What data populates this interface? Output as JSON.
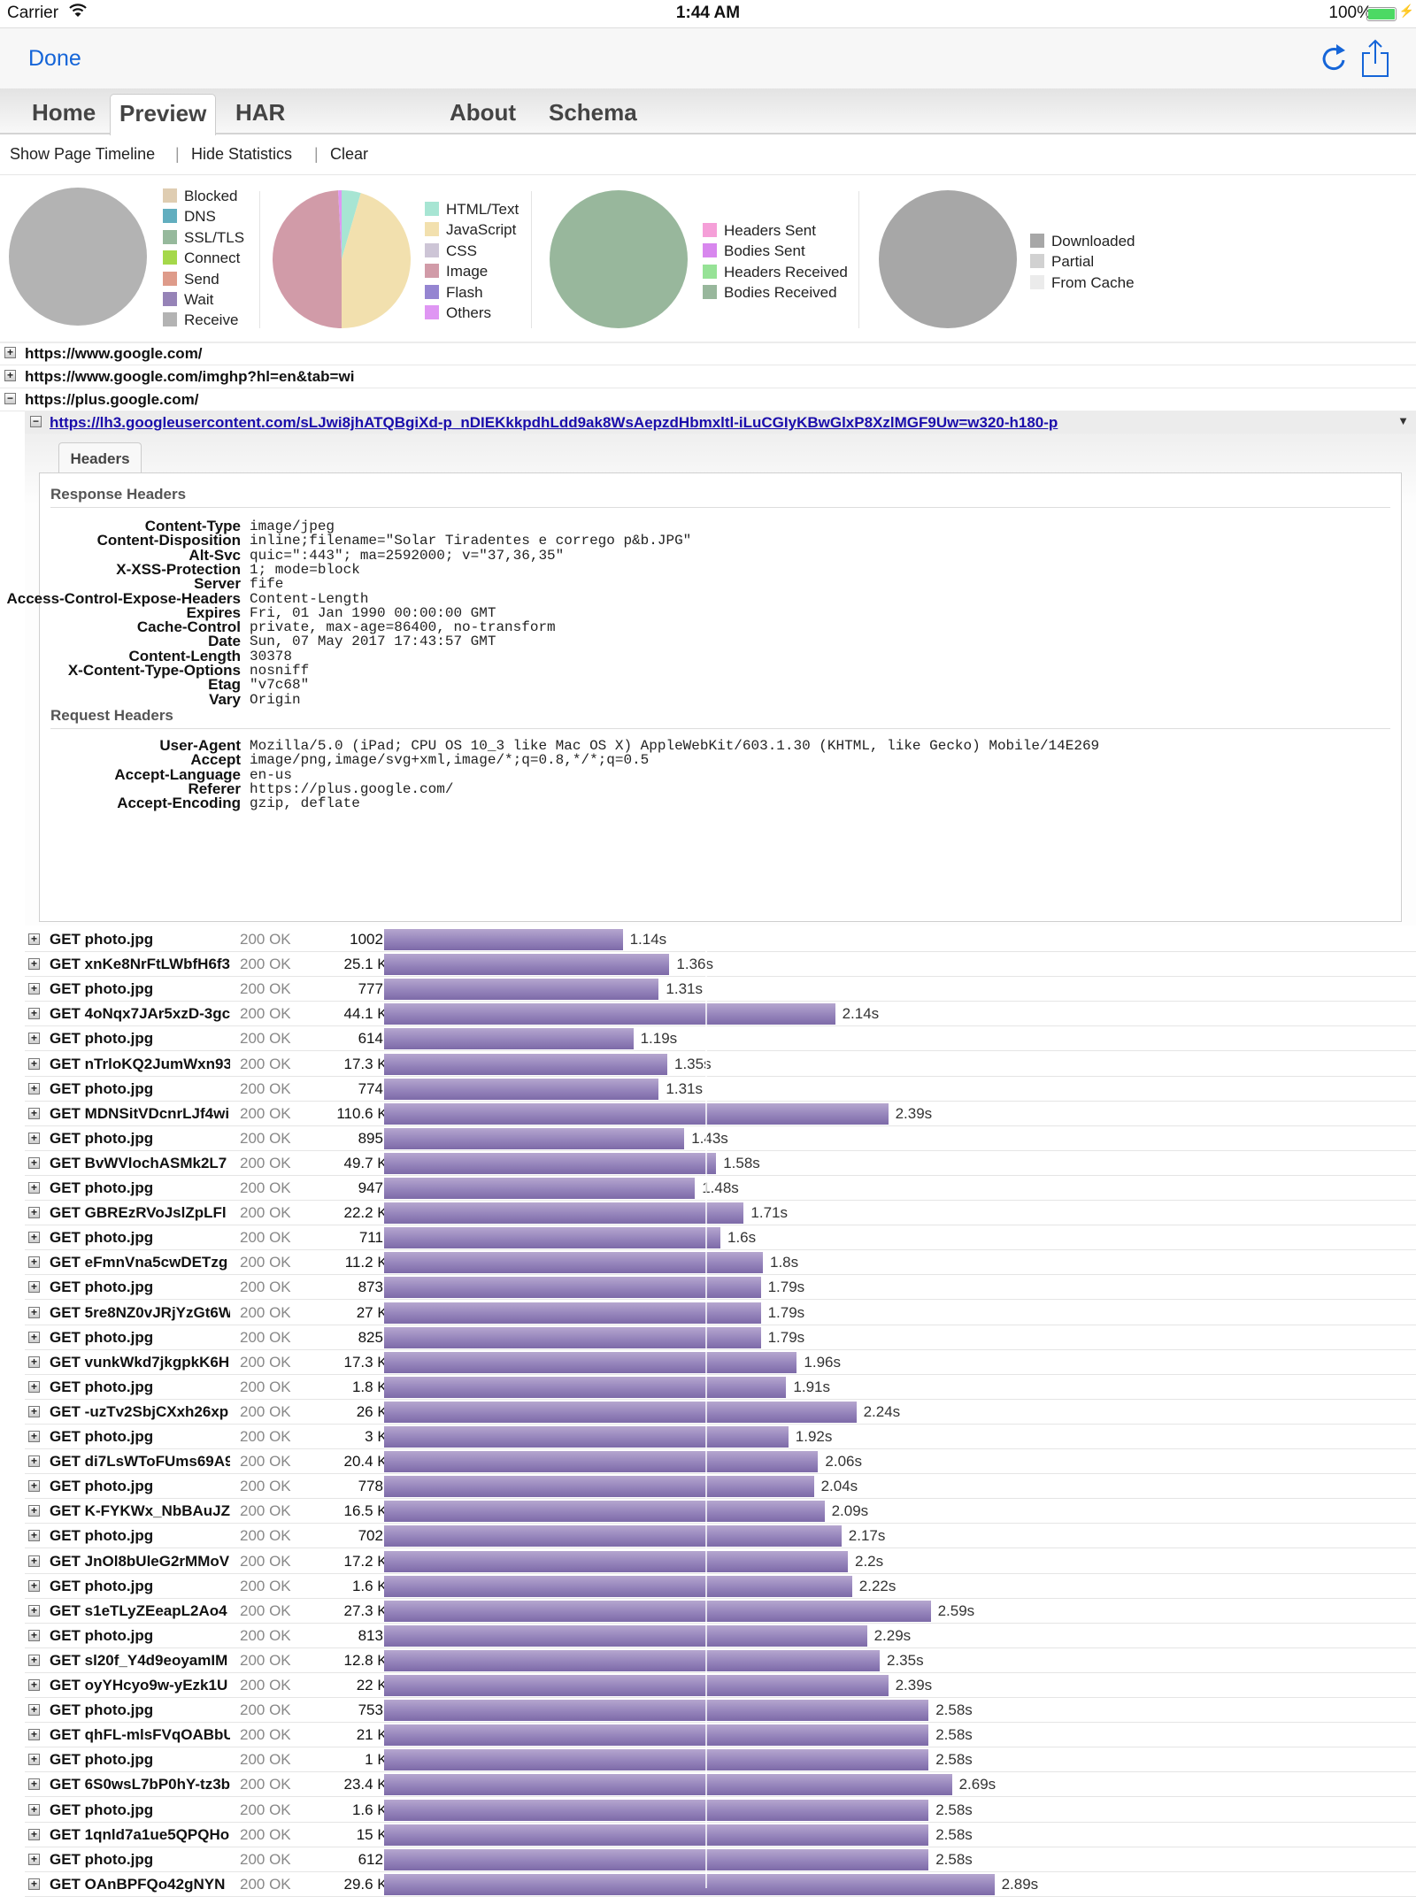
{
  "status_bar": {
    "carrier": "Carrier",
    "time": "1:44 AM",
    "battery": "100%",
    "battery_color": "#4cd964"
  },
  "nav": {
    "done_label": "Done",
    "accent_color": "#1565d8",
    "icons": [
      "refresh-icon",
      "share-icon"
    ]
  },
  "tabs": [
    {
      "label": "Home",
      "active": false
    },
    {
      "label": "Preview",
      "active": true
    },
    {
      "label": "HAR",
      "active": false
    },
    {
      "label": "About",
      "active": false
    },
    {
      "label": "Schema",
      "active": false
    }
  ],
  "toolbar": {
    "show_timeline": "Show Page Timeline",
    "sep1": "|",
    "hide_stats": "Hide Statistics",
    "sep2": "|",
    "clear": "Clear"
  },
  "stats": {
    "timing_legend": [
      {
        "label": "Blocked",
        "color": "#dfcdb2",
        "value": 0
      },
      {
        "label": "DNS",
        "color": "#62aebf",
        "value": 0
      },
      {
        "label": "SSL/TLS",
        "color": "#96b99c",
        "value": 0
      },
      {
        "label": "Connect",
        "color": "#a5d84a",
        "value": 0
      },
      {
        "label": "Send",
        "color": "#de9b8a",
        "value": 0
      },
      {
        "label": "Wait",
        "color": "#9683b7",
        "value": 0
      },
      {
        "label": "Receive",
        "color": "#b3b3b3",
        "value": 100
      }
    ],
    "content_legend": [
      {
        "label": "HTML/Text",
        "color": "#a7e5d3",
        "value": 4.5
      },
      {
        "label": "JavaScript",
        "color": "#f2e0ae",
        "value": 45.5
      },
      {
        "label": "CSS",
        "color": "#cdc5d6",
        "value": 0
      },
      {
        "label": "Image",
        "color": "#d19ba8",
        "value": 49.2
      },
      {
        "label": "Flash",
        "color": "#9585d1",
        "value": 0
      },
      {
        "label": "Others",
        "color": "#df96f3",
        "value": 0.8
      }
    ],
    "traffic_legend": [
      {
        "label": "Headers Sent",
        "color": "#f59fd8",
        "value": 0
      },
      {
        "label": "Bodies Sent",
        "color": "#d887ee",
        "value": 0
      },
      {
        "label": "Headers Received",
        "color": "#96e296",
        "value": 0
      },
      {
        "label": "Bodies Received",
        "color": "#98b79c",
        "value": 100
      }
    ],
    "cache_legend": [
      {
        "label": "Downloaded",
        "color": "#a7a7a7",
        "value": 100
      },
      {
        "label": "Partial",
        "color": "#d1d1d1",
        "value": 0
      },
      {
        "label": "From Cache",
        "color": "#ebebeb",
        "value": 0
      }
    ]
  },
  "pages": [
    {
      "title": "https://www.google.com/",
      "expanded": false
    },
    {
      "title": "https://www.google.com/imghp?hl=en&tab=wi",
      "expanded": false
    },
    {
      "title": "https://plus.google.com/",
      "expanded": true
    }
  ],
  "open_entry": {
    "url": "https://lh3.googleusercontent.com/sLJwi8jhATQBgiXd-p_nDIEKkkpdhLdd9ak8WsAepzdHbmxltl-iLuCGIyKBwGlxP8XzlMGF9Uw=w320-h180-p",
    "tab_label": "Headers",
    "response_title": "Response Headers",
    "response_headers": [
      {
        "name": "Content-Type",
        "value": "image/jpeg"
      },
      {
        "name": "Content-Disposition",
        "value": "inline;filename=\"Solar Tiradentes e corrego p&b.JPG\""
      },
      {
        "name": "Alt-Svc",
        "value": "quic=\":443\"; ma=2592000; v=\"37,36,35\""
      },
      {
        "name": "X-XSS-Protection",
        "value": "1; mode=block"
      },
      {
        "name": "Server",
        "value": "fife"
      },
      {
        "name": "Access-Control-Expose-Headers",
        "value": "Content-Length"
      },
      {
        "name": "Expires",
        "value": "Fri, 01 Jan 1990 00:00:00 GMT"
      },
      {
        "name": "Cache-Control",
        "value": "private, max-age=86400, no-transform"
      },
      {
        "name": "Date",
        "value": "Sun, 07 May 2017 17:43:57 GMT"
      },
      {
        "name": "Content-Length",
        "value": "30378"
      },
      {
        "name": "X-Content-Type-Options",
        "value": "nosniff"
      },
      {
        "name": "Etag",
        "value": "\"v7c68\""
      },
      {
        "name": "Vary",
        "value": "Origin"
      }
    ],
    "request_title": "Request Headers",
    "request_headers": [
      {
        "name": "User-Agent",
        "value": "Mozilla/5.0 (iPad; CPU OS 10_3 like Mac OS X) AppleWebKit/603.1.30 (KHTML, like Gecko) Mobile/14E269"
      },
      {
        "name": "Accept",
        "value": "image/png,image/svg+xml,image/*;q=0.8,*/*;q=0.5"
      },
      {
        "name": "Accept-Language",
        "value": "en-us"
      },
      {
        "name": "Referer",
        "value": "https://plus.google.com/"
      },
      {
        "name": "Accept-Encoding",
        "value": "gzip, deflate"
      }
    ]
  },
  "bar_color": "#9584bb",
  "requests": [
    {
      "name": "GET photo.jpg",
      "status": "200 OK",
      "size": "1002 B",
      "time": "1.14s",
      "seconds": 1.14
    },
    {
      "name": "GET xnKe8NrFtLWbfH6f3",
      "status": "200 OK",
      "size": "25.1 KB",
      "time": "1.36s",
      "seconds": 1.36
    },
    {
      "name": "GET photo.jpg",
      "status": "200 OK",
      "size": "777 B",
      "time": "1.31s",
      "seconds": 1.31
    },
    {
      "name": "GET 4oNqx7JAr5xzD-3gc",
      "status": "200 OK",
      "size": "44.1 KB",
      "time": "2.14s",
      "seconds": 2.14
    },
    {
      "name": "GET photo.jpg",
      "status": "200 OK",
      "size": "614 B",
      "time": "1.19s",
      "seconds": 1.19
    },
    {
      "name": "GET nTrloKQ2JumWxn93",
      "status": "200 OK",
      "size": "17.3 KB",
      "time": "1.35s",
      "seconds": 1.35
    },
    {
      "name": "GET photo.jpg",
      "status": "200 OK",
      "size": "774 B",
      "time": "1.31s",
      "seconds": 1.31
    },
    {
      "name": "GET MDNSitVDcnrLJf4wi",
      "status": "200 OK",
      "size": "110.6 KB",
      "time": "2.39s",
      "seconds": 2.39
    },
    {
      "name": "GET photo.jpg",
      "status": "200 OK",
      "size": "895 B",
      "time": "1.43s",
      "seconds": 1.43
    },
    {
      "name": "GET BvWVlochASMk2L7",
      "status": "200 OK",
      "size": "49.7 KB",
      "time": "1.58s",
      "seconds": 1.58
    },
    {
      "name": "GET photo.jpg",
      "status": "200 OK",
      "size": "947 B",
      "time": "1.48s",
      "seconds": 1.48
    },
    {
      "name": "GET GBREzRVoJslZpLFl",
      "status": "200 OK",
      "size": "22.2 KB",
      "time": "1.71s",
      "seconds": 1.71
    },
    {
      "name": "GET photo.jpg",
      "status": "200 OK",
      "size": "711 B",
      "time": "1.6s",
      "seconds": 1.6
    },
    {
      "name": "GET eFmnVna5cwDETzg",
      "status": "200 OK",
      "size": "11.2 KB",
      "time": "1.8s",
      "seconds": 1.8
    },
    {
      "name": "GET photo.jpg",
      "status": "200 OK",
      "size": "873 B",
      "time": "1.79s",
      "seconds": 1.79
    },
    {
      "name": "GET 5re8NZ0vJRjYzGt6W",
      "status": "200 OK",
      "size": "27 KB",
      "time": "1.79s",
      "seconds": 1.79
    },
    {
      "name": "GET photo.jpg",
      "status": "200 OK",
      "size": "825 B",
      "time": "1.79s",
      "seconds": 1.79
    },
    {
      "name": "GET vunkWkd7jkgpkK6H",
      "status": "200 OK",
      "size": "17.3 KB",
      "time": "1.96s",
      "seconds": 1.96
    },
    {
      "name": "GET photo.jpg",
      "status": "200 OK",
      "size": "1.8 KB",
      "time": "1.91s",
      "seconds": 1.91
    },
    {
      "name": "GET -uzTv2SbjCXxh26xp",
      "status": "200 OK",
      "size": "26 KB",
      "time": "2.24s",
      "seconds": 2.24
    },
    {
      "name": "GET photo.jpg",
      "status": "200 OK",
      "size": "3 KB",
      "time": "1.92s",
      "seconds": 1.92
    },
    {
      "name": "GET di7LsWToFUms69A9",
      "status": "200 OK",
      "size": "20.4 KB",
      "time": "2.06s",
      "seconds": 2.06
    },
    {
      "name": "GET photo.jpg",
      "status": "200 OK",
      "size": "778 B",
      "time": "2.04s",
      "seconds": 2.04
    },
    {
      "name": "GET K-FYKWx_NbBAuJZ",
      "status": "200 OK",
      "size": "16.5 KB",
      "time": "2.09s",
      "seconds": 2.09
    },
    {
      "name": "GET photo.jpg",
      "status": "200 OK",
      "size": "702 B",
      "time": "2.17s",
      "seconds": 2.17
    },
    {
      "name": "GET JnOl8bUleG2rMMoV",
      "status": "200 OK",
      "size": "17.2 KB",
      "time": "2.2s",
      "seconds": 2.2
    },
    {
      "name": "GET photo.jpg",
      "status": "200 OK",
      "size": "1.6 KB",
      "time": "2.22s",
      "seconds": 2.22
    },
    {
      "name": "GET s1eTLyZEeapL2Ao4",
      "status": "200 OK",
      "size": "27.3 KB",
      "time": "2.59s",
      "seconds": 2.59
    },
    {
      "name": "GET photo.jpg",
      "status": "200 OK",
      "size": "813 B",
      "time": "2.29s",
      "seconds": 2.29
    },
    {
      "name": "GET sl20f_Y4d9eoyamIM",
      "status": "200 OK",
      "size": "12.8 KB",
      "time": "2.35s",
      "seconds": 2.35
    },
    {
      "name": "GET oyYHcyo9w-yEzk1U",
      "status": "200 OK",
      "size": "22 KB",
      "time": "2.39s",
      "seconds": 2.39
    },
    {
      "name": "GET photo.jpg",
      "status": "200 OK",
      "size": "753 B",
      "time": "2.58s",
      "seconds": 2.58
    },
    {
      "name": "GET qhFL-mlsFVqOABbU",
      "status": "200 OK",
      "size": "21 KB",
      "time": "2.58s",
      "seconds": 2.58
    },
    {
      "name": "GET photo.jpg",
      "status": "200 OK",
      "size": "1 KB",
      "time": "2.58s",
      "seconds": 2.58
    },
    {
      "name": "GET 6S0wsL7bP0hY-tz3b",
      "status": "200 OK",
      "size": "23.4 KB",
      "time": "2.69s",
      "seconds": 2.69
    },
    {
      "name": "GET photo.jpg",
      "status": "200 OK",
      "size": "1.6 KB",
      "time": "2.58s",
      "seconds": 2.58
    },
    {
      "name": "GET 1qnld7a1ue5QPQHo",
      "status": "200 OK",
      "size": "15 KB",
      "time": "2.58s",
      "seconds": 2.58
    },
    {
      "name": "GET photo.jpg",
      "status": "200 OK",
      "size": "612 B",
      "time": "2.58s",
      "seconds": 2.58
    },
    {
      "name": "GET OAnBPFQo42gNYN",
      "status": "200 OK",
      "size": "29.6 KB",
      "time": "2.89s",
      "seconds": 2.89
    }
  ]
}
